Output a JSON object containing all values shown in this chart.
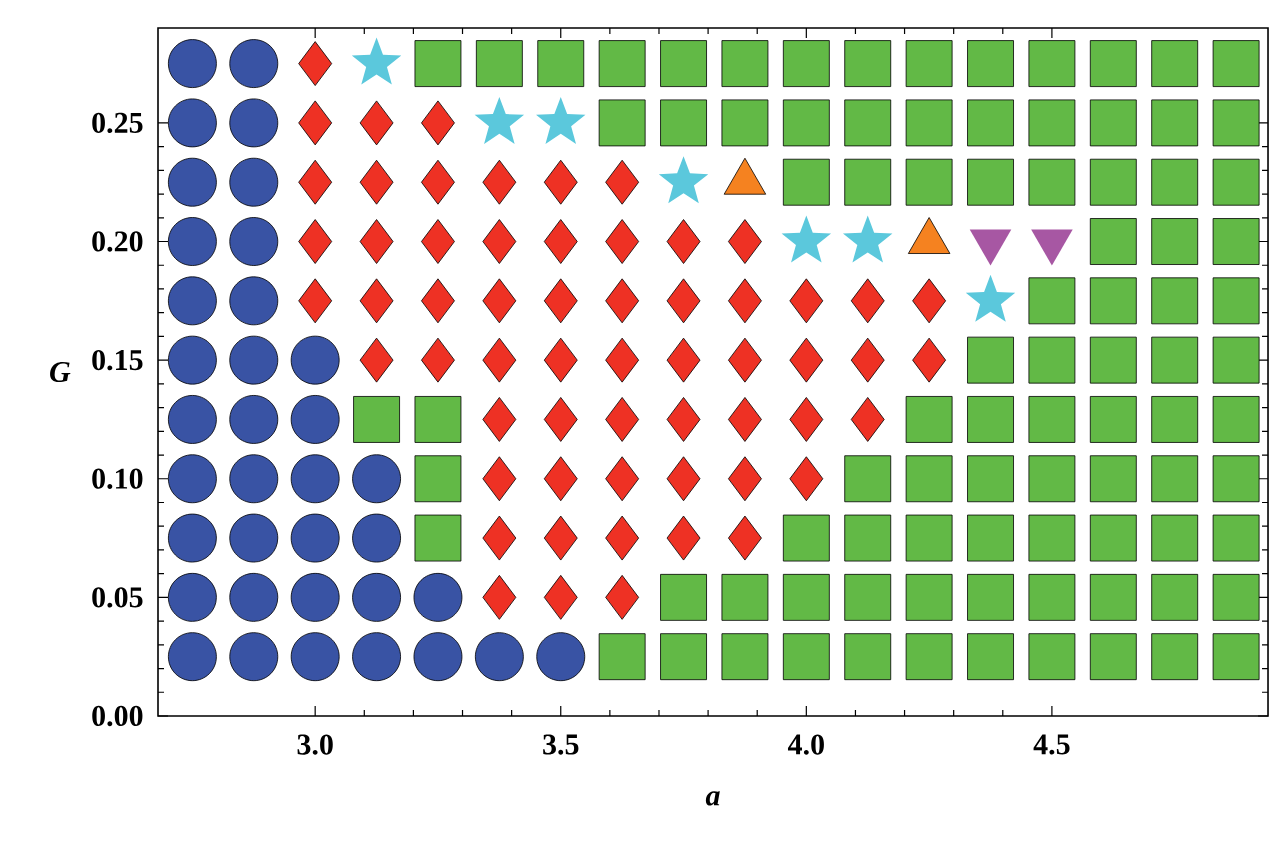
{
  "chart_data": {
    "type": "scatter",
    "xlabel": "a",
    "ylabel": "G",
    "xlim": [
      2.68,
      4.94
    ],
    "ylim": [
      0,
      0.29
    ],
    "xticks": [
      {
        "value": 3,
        "label": "3.0"
      },
      {
        "value": 3.5,
        "label": "3.5"
      },
      {
        "value": 4,
        "label": "4.0"
      },
      {
        "value": 4.5,
        "label": "4.5"
      }
    ],
    "yticks": [
      {
        "value": 0,
        "label": "0.00"
      },
      {
        "value": 0.05,
        "label": "0.05"
      },
      {
        "value": 0.1,
        "label": "0.10"
      },
      {
        "value": 0.15,
        "label": "0.15"
      },
      {
        "value": 0.2,
        "label": "0.20"
      },
      {
        "value": 0.25,
        "label": "0.25"
      }
    ],
    "series": [
      {
        "marker": "circle",
        "color": "#3953a4",
        "x": [
          2.75,
          2.875,
          2.75,
          2.875,
          2.75,
          2.875,
          2.75,
          2.875,
          2.75,
          2.875,
          2.75,
          2.875,
          3.0,
          2.75,
          2.875,
          3.0,
          2.75,
          2.875,
          3.0,
          3.125,
          2.75,
          2.875,
          3.0,
          3.125,
          2.75,
          2.875,
          3.0,
          3.125,
          3.25,
          2.75,
          2.875,
          3.0,
          3.125,
          3.25,
          3.375,
          3.5
        ],
        "values": [
          0.275,
          0.275,
          0.25,
          0.25,
          0.225,
          0.225,
          0.2,
          0.2,
          0.175,
          0.175,
          0.15,
          0.15,
          0.15,
          0.125,
          0.125,
          0.125,
          0.1,
          0.1,
          0.1,
          0.1,
          0.075,
          0.075,
          0.075,
          0.075,
          0.05,
          0.05,
          0.05,
          0.05,
          0.05,
          0.025,
          0.025,
          0.025,
          0.025,
          0.025,
          0.025,
          0.025
        ]
      },
      {
        "marker": "diamond",
        "color": "#ee3124",
        "x": [
          3.0,
          3.0,
          3.125,
          3.25,
          3.0,
          3.125,
          3.25,
          3.375,
          3.5,
          3.625,
          3.0,
          3.125,
          3.25,
          3.375,
          3.5,
          3.625,
          3.75,
          3.875,
          3.0,
          3.125,
          3.25,
          3.375,
          3.5,
          3.625,
          3.75,
          3.875,
          4.0,
          4.125,
          4.25,
          3.125,
          3.25,
          3.375,
          3.5,
          3.625,
          3.75,
          3.875,
          4.0,
          4.125,
          4.25,
          3.375,
          3.5,
          3.625,
          3.75,
          3.875,
          4.0,
          4.125,
          3.375,
          3.5,
          3.625,
          3.75,
          3.875,
          4.0,
          3.375,
          3.5,
          3.625,
          3.75,
          3.875,
          3.375,
          3.5,
          3.625
        ],
        "values": [
          0.275,
          0.25,
          0.25,
          0.25,
          0.225,
          0.225,
          0.225,
          0.225,
          0.225,
          0.225,
          0.2,
          0.2,
          0.2,
          0.2,
          0.2,
          0.2,
          0.2,
          0.2,
          0.175,
          0.175,
          0.175,
          0.175,
          0.175,
          0.175,
          0.175,
          0.175,
          0.175,
          0.175,
          0.175,
          0.15,
          0.15,
          0.15,
          0.15,
          0.15,
          0.15,
          0.15,
          0.15,
          0.15,
          0.15,
          0.125,
          0.125,
          0.125,
          0.125,
          0.125,
          0.125,
          0.125,
          0.1,
          0.1,
          0.1,
          0.1,
          0.1,
          0.1,
          0.075,
          0.075,
          0.075,
          0.075,
          0.075,
          0.05,
          0.05,
          0.05
        ]
      },
      {
        "marker": "square",
        "color": "#62b946",
        "x": [
          3.25,
          3.375,
          3.5,
          3.625,
          3.75,
          3.875,
          4.0,
          4.125,
          4.25,
          4.375,
          4.5,
          4.625,
          4.75,
          4.875,
          3.625,
          3.75,
          3.875,
          4.0,
          4.125,
          4.25,
          4.375,
          4.5,
          4.625,
          4.75,
          4.875,
          4.0,
          4.125,
          4.25,
          4.375,
          4.5,
          4.625,
          4.75,
          4.875,
          4.625,
          4.75,
          4.875,
          4.5,
          4.625,
          4.75,
          4.875,
          4.375,
          4.5,
          4.625,
          4.75,
          4.875,
          3.125,
          3.25,
          4.25,
          4.375,
          4.5,
          4.625,
          4.75,
          4.875,
          3.25,
          4.125,
          4.25,
          4.375,
          4.5,
          4.625,
          4.75,
          4.875,
          3.25,
          4.0,
          4.125,
          4.25,
          4.375,
          4.5,
          4.625,
          4.75,
          4.875,
          3.75,
          3.875,
          4.0,
          4.125,
          4.25,
          4.375,
          4.5,
          4.625,
          4.75,
          4.875,
          3.625,
          3.75,
          3.875,
          4.0,
          4.125,
          4.25,
          4.375,
          4.5,
          4.625,
          4.75,
          4.875
        ],
        "values": [
          0.275,
          0.275,
          0.275,
          0.275,
          0.275,
          0.275,
          0.275,
          0.275,
          0.275,
          0.275,
          0.275,
          0.275,
          0.275,
          0.275,
          0.25,
          0.25,
          0.25,
          0.25,
          0.25,
          0.25,
          0.25,
          0.25,
          0.25,
          0.25,
          0.25,
          0.225,
          0.225,
          0.225,
          0.225,
          0.225,
          0.225,
          0.225,
          0.225,
          0.2,
          0.2,
          0.2,
          0.175,
          0.175,
          0.175,
          0.175,
          0.15,
          0.15,
          0.15,
          0.15,
          0.15,
          0.125,
          0.125,
          0.125,
          0.125,
          0.125,
          0.125,
          0.125,
          0.125,
          0.1,
          0.1,
          0.1,
          0.1,
          0.1,
          0.1,
          0.1,
          0.1,
          0.075,
          0.075,
          0.075,
          0.075,
          0.075,
          0.075,
          0.075,
          0.075,
          0.075,
          0.05,
          0.05,
          0.05,
          0.05,
          0.05,
          0.05,
          0.05,
          0.05,
          0.05,
          0.05,
          0.025,
          0.025,
          0.025,
          0.025,
          0.025,
          0.025,
          0.025,
          0.025,
          0.025,
          0.025,
          0.025
        ]
      },
      {
        "marker": "star",
        "color": "#5bc8dc",
        "x": [
          3.125,
          3.375,
          3.5,
          3.75,
          4.0,
          4.125,
          4.375
        ],
        "values": [
          0.275,
          0.25,
          0.25,
          0.225,
          0.2,
          0.2,
          0.175
        ]
      },
      {
        "marker": "triangle",
        "color": "#f58220",
        "x": [
          3.875,
          4.25
        ],
        "values": [
          0.225,
          0.2
        ]
      },
      {
        "marker": "triangle-down",
        "color": "#a757a3",
        "x": [
          4.375,
          4.5
        ],
        "values": [
          0.2,
          0.2
        ]
      }
    ]
  }
}
